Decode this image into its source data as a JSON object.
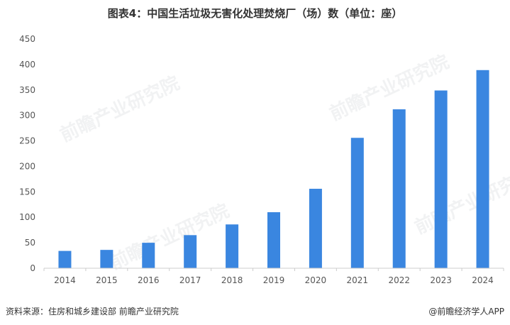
{
  "title": "图表4：中国生活垃圾无害化处理焚烧厂（场）数（单位：座）",
  "footer": {
    "source": "资料来源：住房和城乡建设部 前瞻产业研究院",
    "brand": "@前瞻经济学人APP"
  },
  "watermark": "前瞻产业研究院",
  "colors": {
    "bar": "#3a86e0",
    "axis": "#cccccc"
  },
  "chart_data": {
    "type": "bar",
    "categories": [
      "2014",
      "2015",
      "2016",
      "2017",
      "2018",
      "2019",
      "2020",
      "2021",
      "2022",
      "2023",
      "2024"
    ],
    "values": [
      34,
      36,
      50,
      65,
      86,
      110,
      156,
      256,
      312,
      349,
      389
    ],
    "title": "图表4：中国生活垃圾无害化处理焚烧厂（场）数（单位：座）",
    "ylim": [
      0,
      450
    ],
    "yticks": [
      0,
      50,
      100,
      150,
      200,
      250,
      300,
      350,
      400,
      450
    ],
    "grid": false,
    "legend": "none"
  }
}
